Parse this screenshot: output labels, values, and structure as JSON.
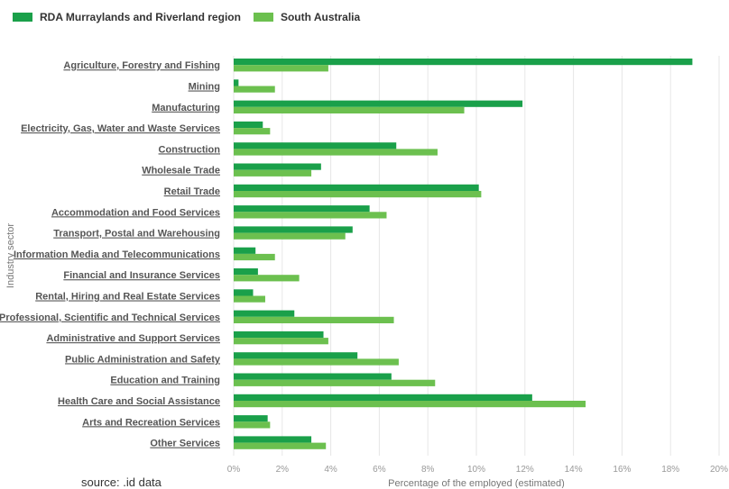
{
  "legend": {
    "series1": "RDA Murraylands and Riverland region",
    "series2": "South Australia"
  },
  "colors": {
    "series1": "#1aa04a",
    "series2": "#6cc04f",
    "grid": "#e6e6e6"
  },
  "source_note": "source: .id data",
  "chart_data": {
    "type": "bar",
    "orientation": "horizontal",
    "title": "",
    "xlabel": "Percentage of the employed (estimated)",
    "ylabel": "Industry sector",
    "xlim": [
      0,
      20
    ],
    "x_ticks": [
      "0%",
      "2%",
      "4%",
      "6%",
      "8%",
      "10%",
      "12%",
      "14%",
      "16%",
      "18%",
      "20%"
    ],
    "grid": true,
    "legend_position": "top-left",
    "categories": [
      "Agriculture, Forestry and Fishing",
      "Mining",
      "Manufacturing",
      "Electricity, Gas, Water and Waste Services",
      "Construction",
      "Wholesale Trade",
      "Retail Trade",
      "Accommodation and Food Services",
      "Transport, Postal and Warehousing",
      "Information Media and Telecommunications",
      "Financial and Insurance Services",
      "Rental, Hiring and Real Estate Services",
      "Professional, Scientific and Technical Services",
      "Administrative and Support Services",
      "Public Administration and Safety",
      "Education and Training",
      "Health Care and Social Assistance",
      "Arts and Recreation Services",
      "Other Services"
    ],
    "series": [
      {
        "name": "RDA Murraylands and Riverland region",
        "values": [
          18.9,
          0.2,
          11.9,
          1.2,
          6.7,
          3.6,
          10.1,
          5.6,
          4.9,
          0.9,
          1.0,
          0.8,
          2.5,
          3.7,
          5.1,
          6.5,
          12.3,
          1.4,
          3.2
        ]
      },
      {
        "name": "South Australia",
        "values": [
          3.9,
          1.7,
          9.5,
          1.5,
          8.4,
          3.2,
          10.2,
          6.3,
          4.6,
          1.7,
          2.7,
          1.3,
          6.6,
          3.9,
          6.8,
          8.3,
          14.5,
          1.5,
          3.8
        ]
      }
    ]
  }
}
